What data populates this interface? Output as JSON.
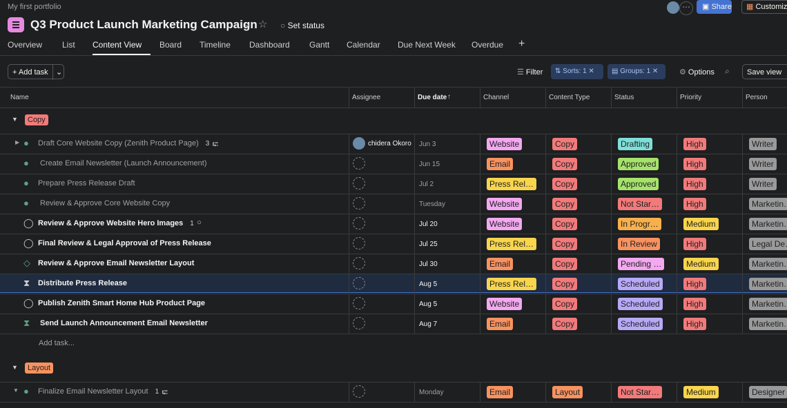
{
  "breadcrumb": "My first portfolio",
  "title": "Q3 Product Launch Marketing Campaign",
  "set_status": "Set status",
  "share": "Share",
  "customize": "Customize",
  "tabs": [
    "Overview",
    "List",
    "Content View",
    "Board",
    "Timeline",
    "Dashboard",
    "Gantt",
    "Calendar",
    "Due Next Week",
    "Overdue"
  ],
  "active_tab": 2,
  "toolbar": {
    "add_task": "Add task",
    "filter": "Filter",
    "sorts": "Sorts: 1",
    "groups": "Groups: 1",
    "options": "Options",
    "save_view": "Save view"
  },
  "columns": [
    "Name",
    "Assignee",
    "Due date",
    "Channel",
    "Content Type",
    "Status",
    "Priority",
    "Person"
  ],
  "tag_colors": {
    "Website": "#f3a8f0",
    "Email": "#f8925f",
    "Press Rel…": "#f9d54c",
    "Copy": "#f27a7a",
    "Layout": "#f8925f",
    "Drafting": "#7ee0d8",
    "Approved": "#a6e36b",
    "Not Star…": "#f27a7a",
    "In Progr…": "#f8b04c",
    "In Review": "#f8925f",
    "Pending …": "#f3a8f0",
    "Scheduled": "#b8a9f7",
    "High": "#f27a7a",
    "Medium": "#f9d54c",
    "Writer": "#9a9a9a",
    "Marketin…": "#9a9a9a",
    "Legal De…": "#9a9a9a",
    "Designer": "#9a9a9a"
  },
  "groups": [
    {
      "name": "Copy",
      "color": "#f27a7a",
      "add_task": "Add task...",
      "rows": [
        {
          "name": "Draft Core Website Copy (Zenith Product Page)",
          "icon": "done",
          "subtasks": "3",
          "assignee": "chidera Okoro",
          "due": "Jun 3",
          "channel": "Website",
          "content_type": "Copy",
          "status": "Drafting",
          "priority": "High",
          "person": "Writer"
        },
        {
          "name": "Create Email Newsletter (Launch Announcement)",
          "icon": "done",
          "due": "Jun 15",
          "channel": "Email",
          "content_type": "Copy",
          "status": "Approved",
          "priority": "High",
          "person": "Writer"
        },
        {
          "name": "Prepare Press Release Draft",
          "icon": "done",
          "due": "Jul 2",
          "channel": "Press Rel…",
          "content_type": "Copy",
          "status": "Approved",
          "priority": "High",
          "person": "Writer"
        },
        {
          "name": "Review & Approve Core Website Copy",
          "icon": "done",
          "due": "Tuesday",
          "channel": "Website",
          "content_type": "Copy",
          "status": "Not Star…",
          "priority": "High",
          "person": "Marketin…"
        },
        {
          "name": "Review & Approve Website Hero Images",
          "icon": "open",
          "comments": "1",
          "due": "Jul 20",
          "channel": "Website",
          "content_type": "Copy",
          "status": "In Progr…",
          "priority": "Medium",
          "person": "Marketin…"
        },
        {
          "name": "Final Review & Legal Approval of Press Release",
          "icon": "open",
          "due": "Jul 25",
          "channel": "Press Rel…",
          "content_type": "Copy",
          "status": "In Review",
          "priority": "High",
          "person": "Legal De…"
        },
        {
          "name": "Review & Approve Email Newsletter Layout",
          "icon": "milestone",
          "due": "Jul 30",
          "channel": "Email",
          "content_type": "Copy",
          "status": "Pending …",
          "priority": "Medium",
          "person": "Marketin…"
        },
        {
          "name": "Distribute Press Release",
          "icon": "waiting",
          "selected": true,
          "due": "Aug 5",
          "channel": "Press Rel…",
          "content_type": "Copy",
          "status": "Scheduled",
          "priority": "High",
          "person": "Marketin…"
        },
        {
          "name": "Publish Zenith Smart Home Hub Product Page",
          "icon": "open",
          "due": "Aug 5",
          "channel": "Website",
          "content_type": "Copy",
          "status": "Scheduled",
          "priority": "High",
          "person": "Marketin…"
        },
        {
          "name": "Send Launch Announcement Email Newsletter",
          "icon": "waiting-green",
          "due": "Aug 7",
          "channel": "Email",
          "content_type": "Copy",
          "status": "Scheduled",
          "priority": "High",
          "person": "Marketin…"
        }
      ]
    },
    {
      "name": "Layout",
      "color": "#f8925f",
      "rows": [
        {
          "name": "Finalize Email Newsletter Layout",
          "icon": "done",
          "subtasks": "1",
          "due": "Monday",
          "channel": "Email",
          "content_type": "Layout",
          "status": "Not Star…",
          "priority": "Medium",
          "person": "Designer"
        }
      ]
    }
  ]
}
